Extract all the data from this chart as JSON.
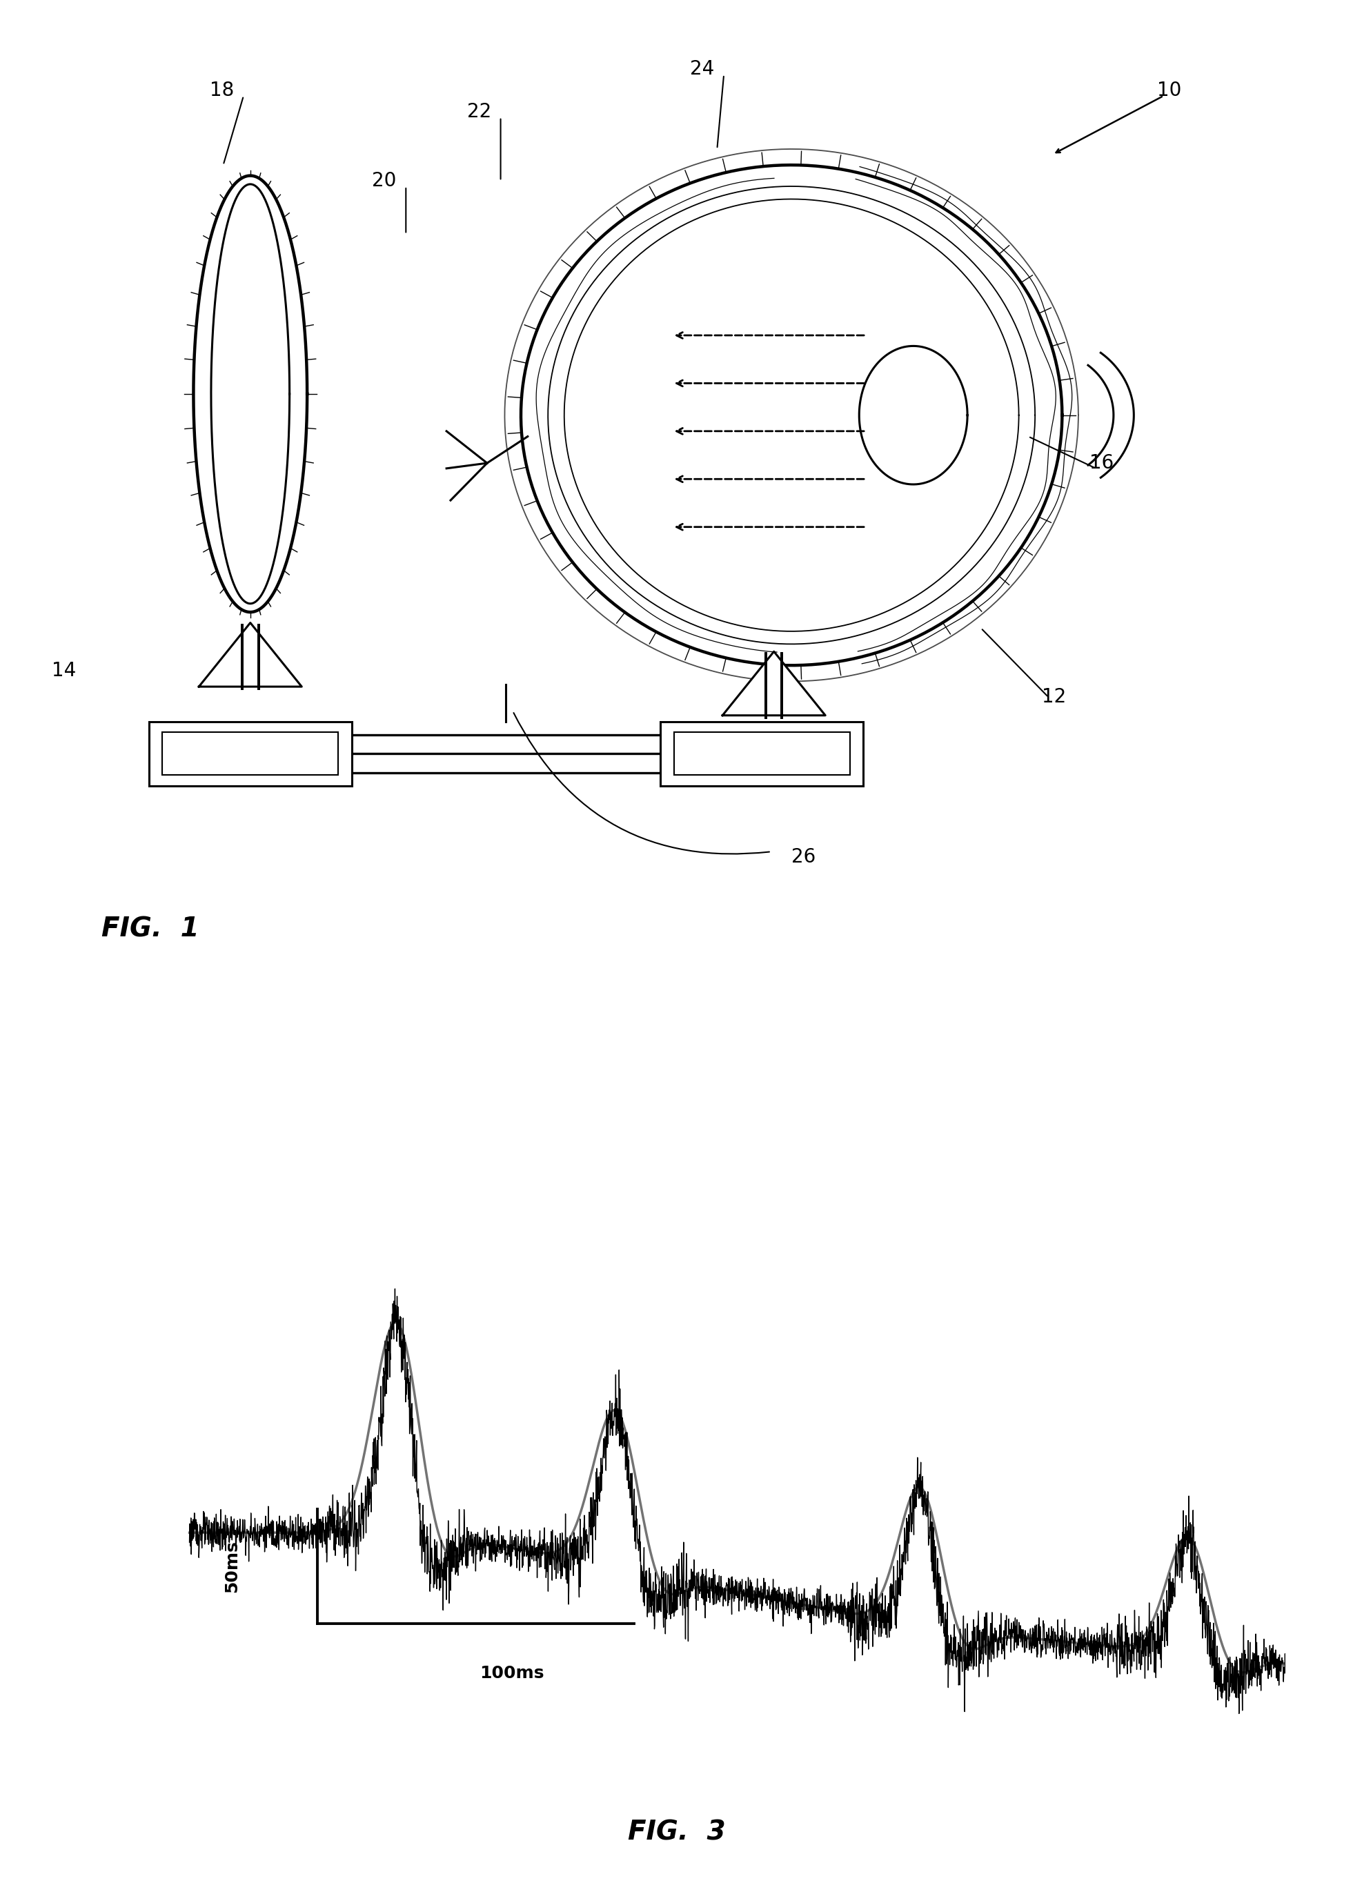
{
  "bg_color": "#ffffff",
  "fig1_label": "FIG.  1",
  "fig3_label": "FIG.  3",
  "label_10": "10",
  "label_12": "12",
  "label_14": "14",
  "label_16": "16",
  "label_18": "18",
  "label_20": "20",
  "label_22": "22",
  "label_24": "24",
  "label_26": "26",
  "scale_bar_y": "50ms",
  "scale_bar_x": "100ms",
  "black": "#000000",
  "lw_main": 2.2,
  "lw_thick": 3.2,
  "fs_label": 20,
  "fs_fig": 28
}
